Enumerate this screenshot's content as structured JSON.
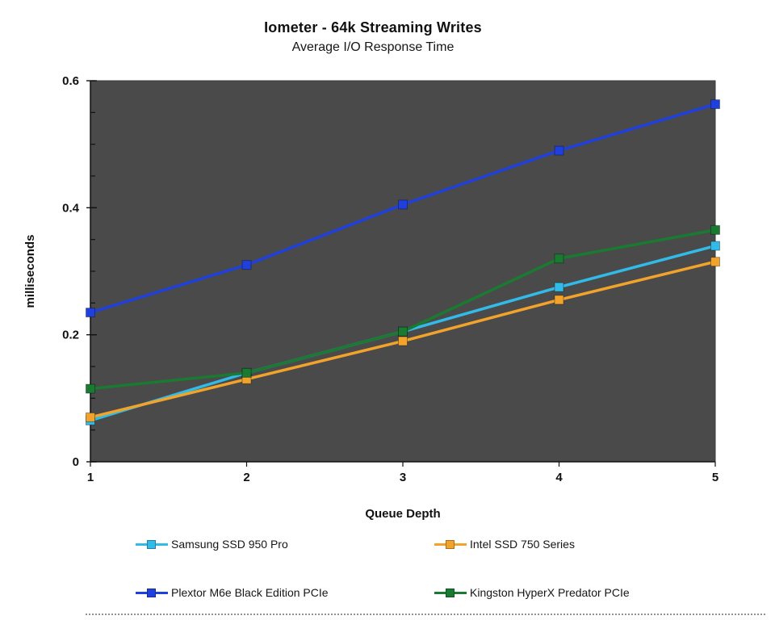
{
  "chart_data": {
    "type": "line",
    "title": "Iometer - 64k Streaming Writes",
    "subtitle": "Average I/O Response Time",
    "xlabel": "Queue Depth",
    "ylabel": "milliseconds",
    "x": [
      1,
      2,
      3,
      4,
      5
    ],
    "x_tick_labels": [
      "1",
      "2",
      "3",
      "4",
      "5"
    ],
    "ylim": [
      0,
      0.6
    ],
    "yticks": [
      {
        "value": 0,
        "label": "0"
      },
      {
        "value": 0.2,
        "label": "0.2"
      },
      {
        "value": 0.4,
        "label": "0.4"
      },
      {
        "value": 0.6,
        "label": "0.6"
      }
    ],
    "ytick_minor_step": 0.05,
    "grid": false,
    "plot_bg": "#4a4a4a",
    "plot_border": "#3a3a3a",
    "axis_color": "#111111",
    "legend_position": "bottom",
    "series": [
      {
        "name": "Samsung SSD 950 Pro",
        "color": "#33bbe8",
        "values": [
          0.065,
          0.14,
          0.205,
          0.275,
          0.34
        ]
      },
      {
        "name": "Intel SSD 750 Series",
        "color": "#f2a32b",
        "values": [
          0.07,
          0.13,
          0.19,
          0.255,
          0.315
        ]
      },
      {
        "name": "Plextor M6e Black Edition PCIe",
        "color": "#2040dd",
        "values": [
          0.235,
          0.31,
          0.405,
          0.49,
          0.563
        ]
      },
      {
        "name": "Kingston HyperX Predator PCIe",
        "color": "#1a7a32",
        "values": [
          0.115,
          0.14,
          0.205,
          0.32,
          0.365
        ]
      }
    ]
  }
}
